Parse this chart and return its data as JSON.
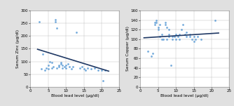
{
  "left": {
    "ylabel": "Serum Zinc (µg/dl)",
    "xlabel": "Blood lead level (µg/dl)",
    "xlim": [
      0,
      25
    ],
    "ylim": [
      0,
      300
    ],
    "yticks": [
      0,
      50,
      100,
      150,
      200,
      250,
      300
    ],
    "xticks": [
      0,
      5,
      10,
      15,
      20,
      25
    ],
    "scatter_x": [
      2.5,
      3.0,
      3.5,
      4.0,
      5.0,
      5.5,
      6.0,
      6.5,
      7.0,
      7.0,
      7.5,
      7.5,
      8.0,
      8.0,
      8.5,
      8.5,
      9.0,
      9.0,
      9.5,
      10.0,
      10.0,
      10.5,
      11.0,
      11.5,
      12.0,
      13.0,
      14.0,
      14.5,
      15.0,
      15.5,
      16.0,
      17.0,
      18.0,
      19.0,
      20.0,
      20.5,
      21.0,
      4.5,
      5.0,
      6.0
    ],
    "scatter_y": [
      255,
      70,
      130,
      65,
      70,
      100,
      95,
      80,
      265,
      255,
      230,
      75,
      85,
      80,
      90,
      95,
      85,
      75,
      80,
      85,
      75,
      90,
      80,
      70,
      80,
      215,
      75,
      80,
      70,
      65,
      75,
      70,
      75,
      65,
      65,
      25,
      65,
      75,
      85,
      75
    ],
    "trend_x": [
      2,
      22
    ],
    "trend_y": [
      148,
      62
    ],
    "scatter_color": "#5b9bd5",
    "trend_color": "#1f3864",
    "marker_size": 4
  },
  "right": {
    "ylabel": "Serum Copper (µg/dl)",
    "xlabel": "Blood lead level (µg/dl)",
    "xlim": [
      0,
      25
    ],
    "ylim": [
      0,
      160
    ],
    "yticks": [
      0,
      20,
      40,
      60,
      80,
      100,
      120,
      140,
      160
    ],
    "xticks": [
      0,
      5,
      10,
      15,
      20,
      25
    ],
    "scatter_x": [
      2.0,
      3.0,
      3.5,
      4.0,
      4.5,
      5.0,
      5.0,
      5.5,
      5.5,
      6.0,
      6.0,
      6.5,
      7.0,
      7.0,
      7.5,
      7.5,
      8.0,
      8.0,
      8.0,
      8.5,
      9.0,
      9.0,
      9.5,
      10.0,
      10.0,
      10.5,
      11.0,
      11.0,
      11.5,
      12.0,
      12.5,
      13.0,
      13.0,
      14.0,
      14.0,
      14.5,
      15.0,
      15.0,
      15.5,
      16.0,
      17.0,
      21.0,
      4.0,
      4.5
    ],
    "scatter_y": [
      75,
      65,
      70,
      135,
      140,
      125,
      120,
      130,
      105,
      100,
      110,
      100,
      135,
      130,
      125,
      100,
      110,
      105,
      120,
      45,
      105,
      100,
      105,
      110,
      100,
      105,
      110,
      100,
      120,
      130,
      110,
      105,
      115,
      105,
      110,
      100,
      95,
      105,
      100,
      105,
      100,
      140,
      130,
      135
    ],
    "trend_x": [
      1,
      22
    ],
    "trend_y": [
      103,
      113
    ],
    "scatter_color": "#5b9bd5",
    "trend_color": "#1f3864",
    "marker_size": 4
  },
  "outer_bg": "#e0e0e0",
  "panel_bg": "#ffffff",
  "grid_color": "#bbbbbb",
  "label_fontsize": 4.2,
  "tick_fontsize": 4.0,
  "ylabel_rotation": 90
}
